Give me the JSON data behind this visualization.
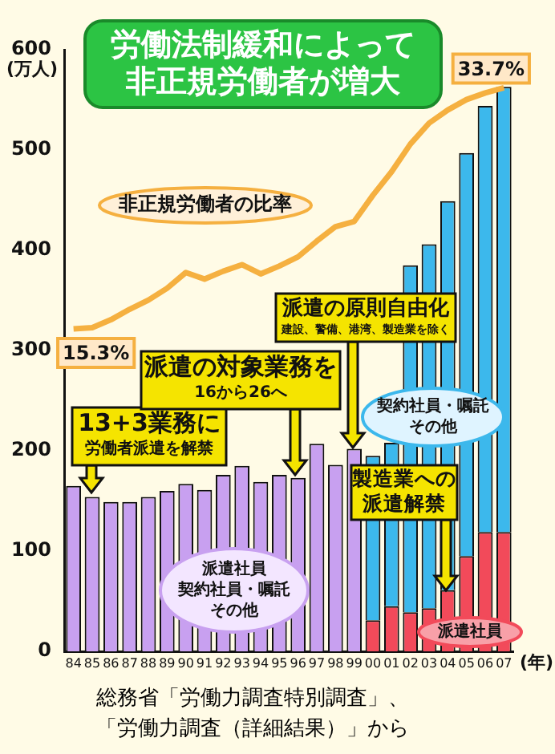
{
  "chart_data": {
    "type": "bar",
    "title": "労働法制緩和によって非正規労働者が増大",
    "ylabel": "(万人)",
    "xlabel": "(年)",
    "categories": [
      "84",
      "85",
      "86",
      "87",
      "88",
      "89",
      "90",
      "91",
      "92",
      "93",
      "94",
      "95",
      "96",
      "97",
      "98",
      "99",
      "00",
      "01",
      "02",
      "03",
      "04",
      "05",
      "06",
      "07"
    ],
    "stacked": true,
    "ylim": [
      0,
      600
    ],
    "yticks": [
      0,
      100,
      200,
      300,
      400,
      500,
      600
    ],
    "y2lim": [
      -9.3,
      36.6
    ],
    "grid": false,
    "legend": false,
    "marker": "none",
    "series": [
      {
        "name": "派遣社員契約社員・嘱託その他",
        "color": "#c8a0f0",
        "values": [
          165,
          154,
          149,
          149,
          154,
          160,
          167,
          161,
          176,
          185,
          169,
          176,
          173,
          207,
          186,
          202,
          null,
          null,
          null,
          null,
          null,
          null,
          null,
          null
        ]
      },
      {
        "name": "派遣社員",
        "color": "#f24a5a",
        "values": [
          null,
          null,
          null,
          null,
          null,
          null,
          null,
          null,
          null,
          null,
          null,
          null,
          null,
          null,
          null,
          null,
          31,
          45,
          39,
          43,
          61,
          95,
          119,
          119
        ]
      },
      {
        "name": "契約社員・嘱託その他",
        "color": "#3cb8ec",
        "values": [
          null,
          null,
          null,
          null,
          null,
          null,
          null,
          null,
          null,
          null,
          null,
          null,
          null,
          null,
          null,
          null,
          164,
          163,
          346,
          363,
          388,
          402,
          425,
          444
        ]
      },
      {
        "name": "非正規労働者の比率",
        "type": "line",
        "axis": "y2",
        "color": "#f5b040",
        "values": [
          15.3,
          15.4,
          16.0,
          16.8,
          17.5,
          18.4,
          19.6,
          19.1,
          19.7,
          20.2,
          19.5,
          20.1,
          20.8,
          22.0,
          23.1,
          23.5,
          25.5,
          27.3,
          29.4,
          31.0,
          32.0,
          32.8,
          33.3,
          33.7
        ],
        "value_labels": [
          "15.3%",
          null,
          null,
          null,
          null,
          null,
          null,
          null,
          null,
          null,
          null,
          null,
          null,
          null,
          null,
          null,
          null,
          null,
          null,
          null,
          null,
          null,
          null,
          "33.7%"
        ]
      }
    ],
    "annotations": [
      "13+3業務に労働者派遣を解禁",
      "派遣の対象業務を16から26へ",
      "派遣の原則自由化建設、警備、港湾、製造業を除く",
      "製造業への派遣解禁",
      "総務省「労働力調査特別調査」、「労働力調査（詳細結果）」から"
    ]
  }
}
